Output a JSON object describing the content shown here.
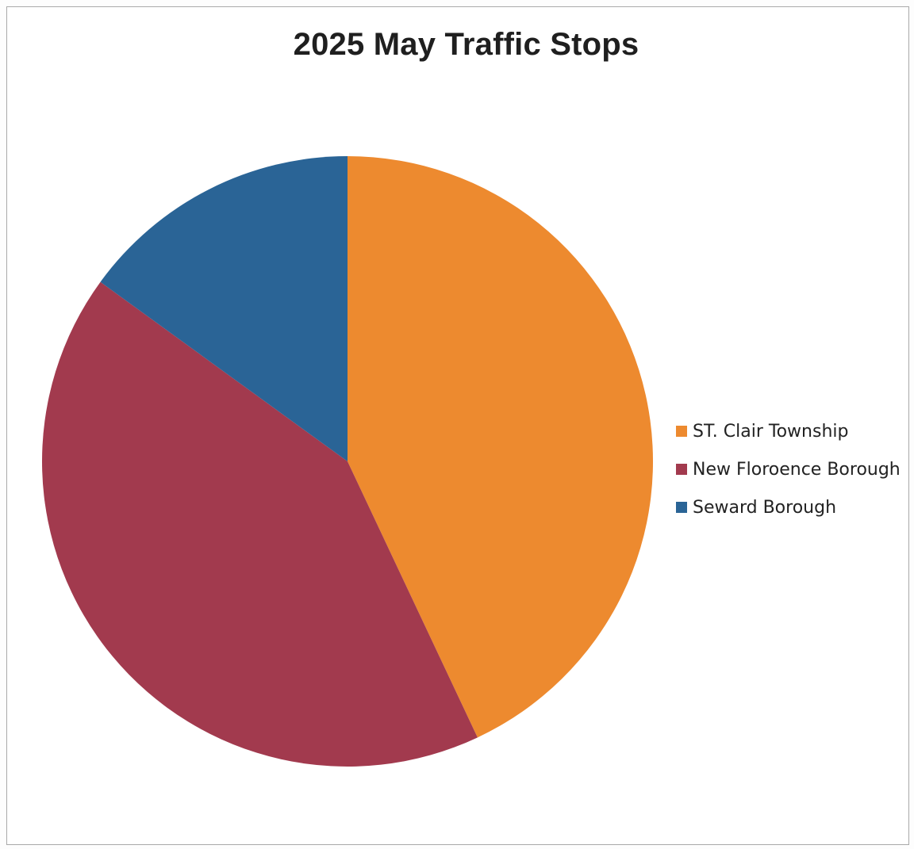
{
  "chart_data": {
    "type": "pie",
    "title": "2025 May Traffic Stops",
    "slices": [
      {
        "label": "ST. Clair Township",
        "value": 43,
        "color": "#ED8A2F"
      },
      {
        "label": "New Floroence Borough",
        "value": 42,
        "color": "#A23A4E"
      },
      {
        "label": "Seward Borough",
        "value": 15,
        "color": "#2A6496"
      }
    ],
    "start_angle": "12 o'clock",
    "direction": "clockwise",
    "legend_position": "right",
    "data_labels": false
  }
}
